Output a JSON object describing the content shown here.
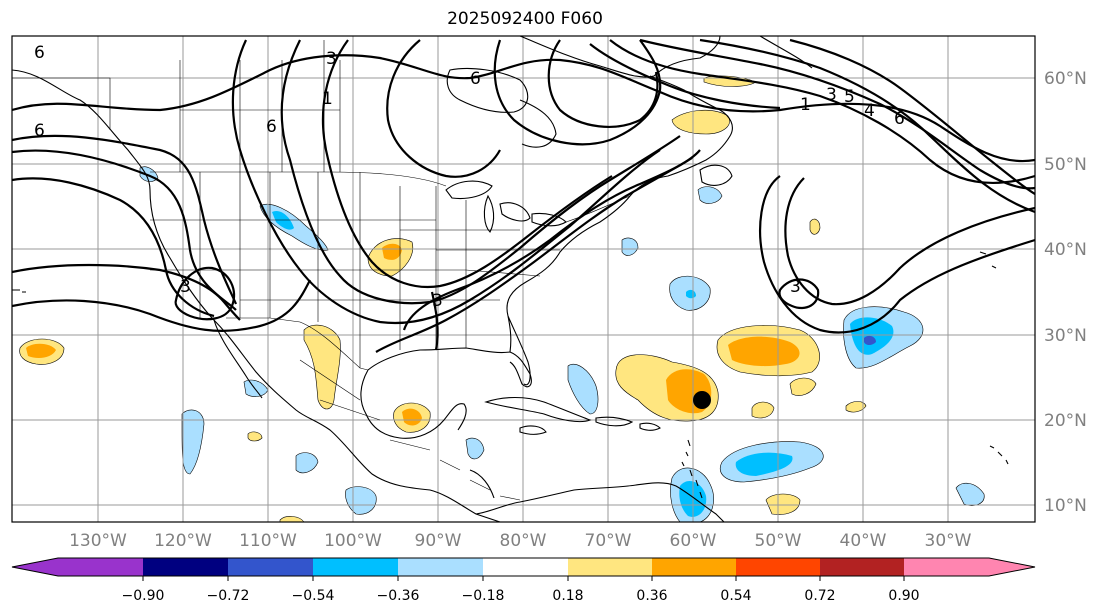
{
  "title": "2025092400 F060",
  "lon_labels": [
    "130°W",
    "120°W",
    "110°W",
    "100°W",
    "90°W",
    "80°W",
    "70°W",
    "60°W",
    "50°W",
    "40°W",
    "30°W"
  ],
  "lat_labels": [
    "60°N",
    "50°N",
    "40°N",
    "30°N",
    "20°N",
    "10°N"
  ],
  "colorbar": {
    "ticks": [
      "−0.90",
      "−0.72",
      "−0.54",
      "−0.36",
      "−0.18",
      "0.18",
      "0.36",
      "0.54",
      "0.72",
      "0.90"
    ],
    "colors": [
      "#9933cc",
      "#000080",
      "#3355cc",
      "#00bfff",
      "#aadfff",
      "#ffffff",
      "#ffe680",
      "#ffa500",
      "#ff4500",
      "#b22222",
      "#ff85b0"
    ]
  },
  "contour_labels": [
    "6",
    "3",
    "6",
    "6",
    "1",
    "3",
    "5",
    "4",
    "6",
    "6",
    "3",
    "3",
    "3",
    "1"
  ],
  "marker": "storm-center"
}
